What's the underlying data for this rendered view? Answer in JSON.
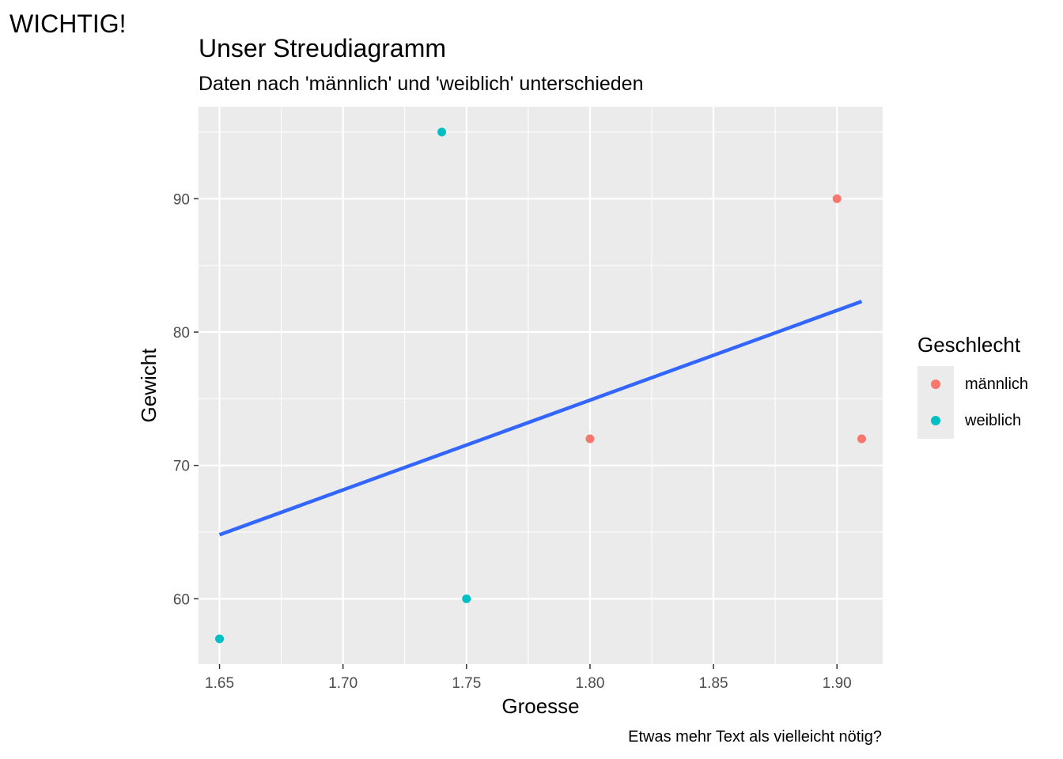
{
  "tag": "WICHTIG!",
  "chart_data": {
    "type": "scatter",
    "title": "Unser Streudiagramm",
    "subtitle": "Daten nach 'männlich' und 'weiblich' unterschieden",
    "caption": "Etwas mehr Text als vielleicht nötig?",
    "xlabel": "Groesse",
    "ylabel": "Gewicht",
    "xlim": [
      1.6415,
      1.9185
    ],
    "ylim": [
      55.1,
      96.9
    ],
    "x_ticks": [
      1.65,
      1.7,
      1.75,
      1.8,
      1.85,
      1.9
    ],
    "x_tick_labels": [
      "1.65",
      "1.70",
      "1.75",
      "1.80",
      "1.85",
      "1.90"
    ],
    "y_ticks": [
      60,
      70,
      80,
      90
    ],
    "y_tick_labels": [
      "60",
      "70",
      "80",
      "90"
    ],
    "grid": true,
    "legend": {
      "title": "Geschlecht",
      "position": "right",
      "entries": [
        {
          "label": "männlich",
          "color": "#F8766D"
        },
        {
          "label": "weiblich",
          "color": "#00BFC4"
        }
      ]
    },
    "series": [
      {
        "name": "männlich",
        "color": "#F8766D",
        "points": [
          {
            "x": 1.8,
            "y": 72
          },
          {
            "x": 1.9,
            "y": 90
          },
          {
            "x": 1.91,
            "y": 72
          }
        ]
      },
      {
        "name": "weiblich",
        "color": "#00BFC4",
        "points": [
          {
            "x": 1.65,
            "y": 57
          },
          {
            "x": 1.74,
            "y": 95
          },
          {
            "x": 1.75,
            "y": 60
          }
        ]
      }
    ],
    "trend_line": {
      "color": "#3366FF",
      "x": [
        1.65,
        1.91
      ],
      "y": [
        64.8,
        82.3
      ]
    },
    "panel_color": "#EBEBEB"
  }
}
